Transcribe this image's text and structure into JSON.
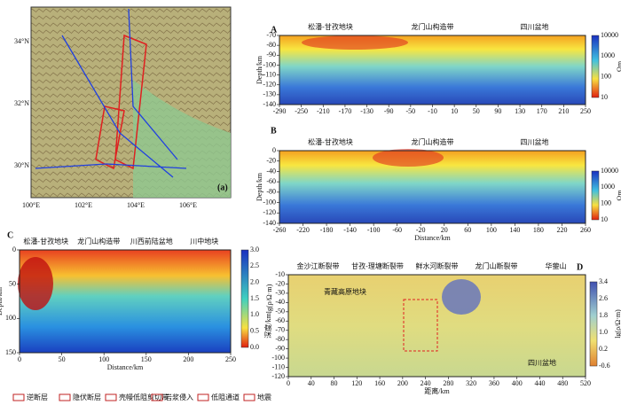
{
  "panels": {
    "a": {
      "label": "(a)",
      "lat": [
        "34°N",
        "32°N",
        "30°N"
      ],
      "lon": [
        "100°E",
        "102°E",
        "104°E",
        "106°E"
      ]
    },
    "b1": {
      "label": "A",
      "ylabel": "Depth/km",
      "yticks": [
        "-70",
        "-80",
        "-90",
        "-100",
        "-110",
        "-120",
        "-130",
        "-140"
      ],
      "xticks": [
        "-290",
        "-250",
        "-210",
        "-170",
        "-130",
        "-90",
        "-50",
        "-10",
        "10",
        "50",
        "90",
        "130",
        "170",
        "210",
        "250"
      ],
      "colorbar": [
        "10000",
        "1000",
        "100",
        "10"
      ],
      "unit": "Ωm",
      "top": [
        "松潘-甘孜地块",
        "龙门山构造带",
        "四川盆地"
      ]
    },
    "b2": {
      "label": "B",
      "ylabel": "Depth/km",
      "xlabel": "Distance/km",
      "yticks": [
        "0",
        "-20",
        "-40",
        "-60",
        "-80",
        "-100",
        "-120",
        "-140"
      ],
      "xticks": [
        "-260",
        "-220",
        "-180",
        "-140",
        "-100",
        "-60",
        "-20",
        "20",
        "60",
        "100",
        "140",
        "180",
        "220",
        "260"
      ],
      "colorbar": [
        "10000",
        "1000",
        "100",
        "10"
      ],
      "unit": "Ωm",
      "top": [
        "松潘-甘孜地块",
        "龙门山构造带",
        "四川盆地"
      ]
    },
    "c": {
      "label": "C",
      "ylabel": "Depth/km",
      "xlabel": "Distance/km",
      "yticks": [
        "0",
        "50",
        "100",
        "150"
      ],
      "xticks": [
        "0",
        "50",
        "100",
        "150",
        "200",
        "250"
      ],
      "colorbar": [
        "3.0",
        "2.5",
        "2.0",
        "1.5",
        "1.0",
        "0.5",
        "0.0"
      ],
      "unit": "lg(ρ/Ω·m)",
      "top": [
        "松潘-甘孜地块",
        "龙门山构造带",
        "川西前陆盆地",
        "川中地块"
      ]
    },
    "d": {
      "label": "D",
      "ylabel": "深度/km",
      "xlabel": "距离/km",
      "yticks": [
        "-10",
        "-20",
        "-30",
        "-40",
        "-50",
        "-60",
        "-70",
        "-80",
        "-90",
        "-100",
        "-110",
        "-120"
      ],
      "xticks": [
        "0",
        "40",
        "80",
        "120",
        "160",
        "200",
        "240",
        "280",
        "320",
        "360",
        "400",
        "440",
        "480",
        "520"
      ],
      "colorbar": [
        "3.4",
        "2.6",
        "1.8",
        "1.0",
        "0.2",
        "-0.6"
      ],
      "unit": "lg(ρ/Ω·m)",
      "top": [
        "金沙江断裂带",
        "甘孜-理塘断裂带",
        "鲜水河断裂带",
        "龙门山断裂带",
        "华蓥山"
      ],
      "notes": [
        "青藏高原地块",
        "四川盆地"
      ]
    }
  },
  "legend": [
    "逆断层",
    "隐伏断层",
    "壳幔低阻剪切带",
    "岩浆侵入",
    "低阻通道",
    "地震"
  ]
}
